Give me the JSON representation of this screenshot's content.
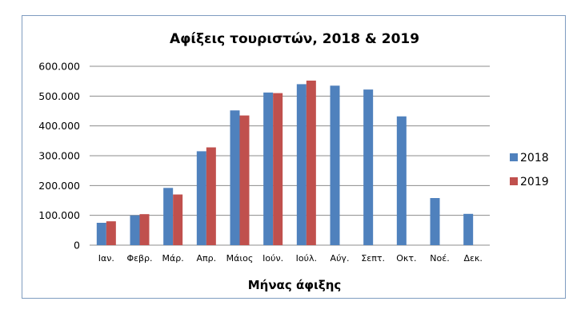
{
  "chart_data": {
    "type": "bar",
    "title": "Αφίξεις τουριστών, 2018 & 2019",
    "xlabel": "Μήνας άφιξης",
    "ylabel": "",
    "categories": [
      "Ιαν.",
      "Φεβρ.",
      "Μάρ.",
      "Απρ.",
      "Μάιος",
      "Ιούν.",
      "Ιούλ.",
      "Αύγ.",
      "Σεπτ.",
      "Οκτ.",
      "Νοέ.",
      "Δεκ."
    ],
    "series": [
      {
        "name": "2018",
        "color": "#4f81bd",
        "values": [
          75000,
          100000,
          192000,
          315000,
          452000,
          512000,
          540000,
          535000,
          522000,
          432000,
          158000,
          105000
        ]
      },
      {
        "name": "2019",
        "color": "#c0504d",
        "values": [
          80000,
          104000,
          170000,
          328000,
          435000,
          510000,
          552000,
          null,
          null,
          null,
          null,
          null
        ]
      }
    ],
    "ylim": [
      0,
      600000
    ],
    "yticks": [
      0,
      100000,
      200000,
      300000,
      400000,
      500000,
      600000
    ],
    "ytick_labels": [
      "0",
      "100.000",
      "200.000",
      "300.000",
      "400.000",
      "500.000",
      "600.000"
    ],
    "grid": true,
    "legend_position": "right"
  }
}
